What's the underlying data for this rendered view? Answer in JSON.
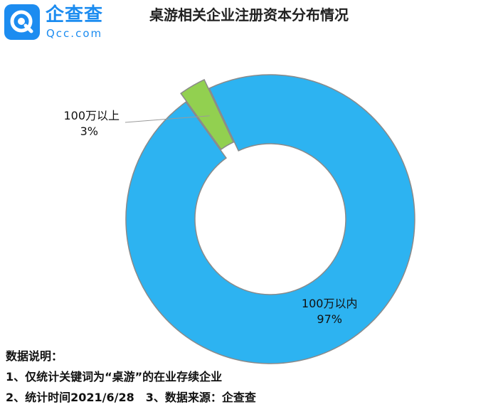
{
  "logo": {
    "name": "企查查",
    "domain": "Qcc.com"
  },
  "chart_data": {
    "type": "pie",
    "title": "桌游相关企业注册资本分布情况",
    "donut": true,
    "slices": [
      {
        "name": "100万以内",
        "value": 97,
        "label": "97%",
        "color": "#2db3f1"
      },
      {
        "name": "100万以上",
        "value": 3,
        "label": "3%",
        "color": "#92d050",
        "exploded": true
      }
    ]
  },
  "notes": {
    "heading": "数据说明：",
    "item1": "1、仅统计关键词为“桌游”的在业存续企业",
    "item2": "2、统计时间2021/6/28",
    "item3": "3、数据来源：企查查"
  }
}
